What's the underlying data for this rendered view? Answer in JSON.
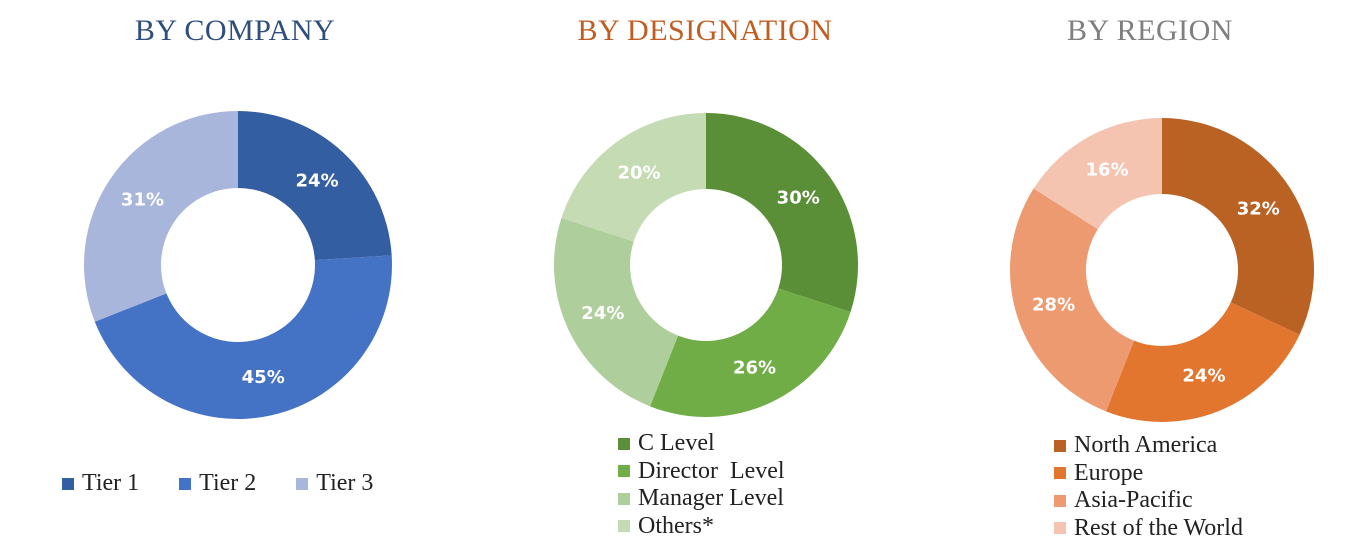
{
  "chart_data": [
    {
      "type": "pie",
      "donut": true,
      "title": "BY COMPANY",
      "title_color": "#2e4f7c",
      "legend_position": "bottom",
      "slices": [
        {
          "label": "Tier 1",
          "value": 24,
          "value_label": "24%",
          "color": "#345ea2"
        },
        {
          "label": "Tier 2",
          "value": 45,
          "value_label": "45%",
          "color": "#4472c4"
        },
        {
          "label": "Tier 3",
          "value": 31,
          "value_label": "31%",
          "color": "#a9b6dc"
        }
      ]
    },
    {
      "type": "pie",
      "donut": true,
      "title": "BY DESIGNATION",
      "title_color": "#c25d21",
      "legend_position": "bottom",
      "slices": [
        {
          "label": "C Level",
          "value": 30,
          "value_label": "30%",
          "color": "#5a8f38"
        },
        {
          "label": "Director  Level",
          "value": 26,
          "value_label": "26%",
          "color": "#70ad47"
        },
        {
          "label": "Manager Level",
          "value": 24,
          "value_label": "24%",
          "color": "#aecf9b"
        },
        {
          "label": "Others*",
          "value": 20,
          "value_label": "20%",
          "color": "#c4dbb4"
        }
      ]
    },
    {
      "type": "pie",
      "donut": true,
      "title": "BY REGION",
      "title_color": "#7f7f7f",
      "legend_position": "bottom",
      "slices": [
        {
          "label": "North America",
          "value": 32,
          "value_label": "32%",
          "color": "#ba6124"
        },
        {
          "label": "Europe",
          "value": 24,
          "value_label": "24%",
          "color": "#e2762f"
        },
        {
          "label": "Asia-Pacific",
          "value": 28,
          "value_label": "28%",
          "color": "#ee9a70"
        },
        {
          "label": "Rest of the World",
          "value": 16,
          "value_label": "16%",
          "color": "#f4c4b1"
        }
      ]
    }
  ]
}
